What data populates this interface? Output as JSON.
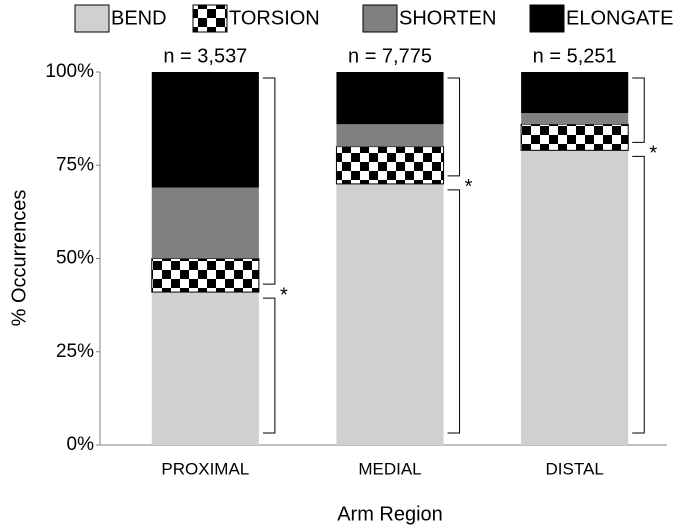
{
  "chart_data": {
    "type": "stacked_bar",
    "categories": [
      "PROXIMAL",
      "MEDIAL",
      "DISTAL"
    ],
    "series": [
      {
        "name": "BEND",
        "color": "#d0d0d0",
        "values": [
          41,
          70,
          79
        ]
      },
      {
        "name": "TORSION",
        "color": "#000000",
        "pattern": "checkerboard",
        "values": [
          9,
          10,
          7
        ]
      },
      {
        "name": "SHORTEN",
        "color": "#808080",
        "values": [
          19,
          6,
          3
        ]
      },
      {
        "name": "ELONGATE",
        "color": "#000000",
        "values": [
          31,
          14,
          11
        ]
      }
    ],
    "annotations": [
      "n = 3,537",
      "n = 7,775",
      "n = 5,251"
    ],
    "significance": [
      "*",
      "*",
      "*"
    ],
    "xlabel": "Arm Region",
    "ylabel": "% Occurrences",
    "ylim": [
      0,
      100
    ],
    "yticks": [
      {
        "value": 0,
        "label": "0%"
      },
      {
        "value": 25,
        "label": "25%"
      },
      {
        "value": 50,
        "label": "50%"
      },
      {
        "value": 75,
        "label": "75%"
      },
      {
        "value": 100,
        "label": "100%"
      }
    ],
    "legend": "top",
    "grid": false
  }
}
